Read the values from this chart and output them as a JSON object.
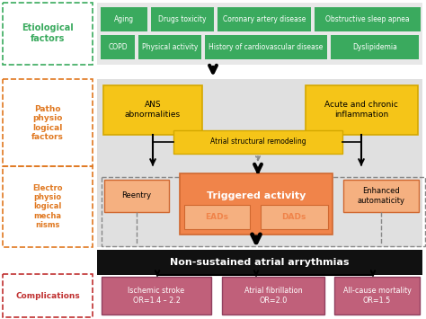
{
  "fig_width": 4.74,
  "fig_height": 3.55,
  "dpi": 100,
  "bg_color": "#ffffff",
  "green_box_color": "#3aaa5e",
  "yellow_box_color": "#f5c518",
  "yellow_box_border": "#d4a800",
  "orange_box_color": "#f0844a",
  "orange_box_border": "#d06830",
  "orange_light_color": "#f5b080",
  "pink_box_color": "#c0607a",
  "pink_box_border": "#904060",
  "black_box_color": "#111111",
  "gray_bg": "#e0e0e0",
  "label_green": "#3aaa5e",
  "label_orange": "#e07820",
  "label_red": "#c03030",
  "etiological_items_row1": [
    "Aging",
    "Drugs toxicity",
    "Coronary artery disease",
    "Obstructive sleep apnea"
  ],
  "etiological_items_row2": [
    "COPD",
    "Physical activity",
    "History of cardiovascular disease",
    "Dyslipidemia"
  ],
  "complications": [
    "Ischemic stroke\nOR=1.4 – 2.2",
    "Atrial fibrillation\nOR=2.0",
    "All-cause mortality\nOR=1.5"
  ]
}
